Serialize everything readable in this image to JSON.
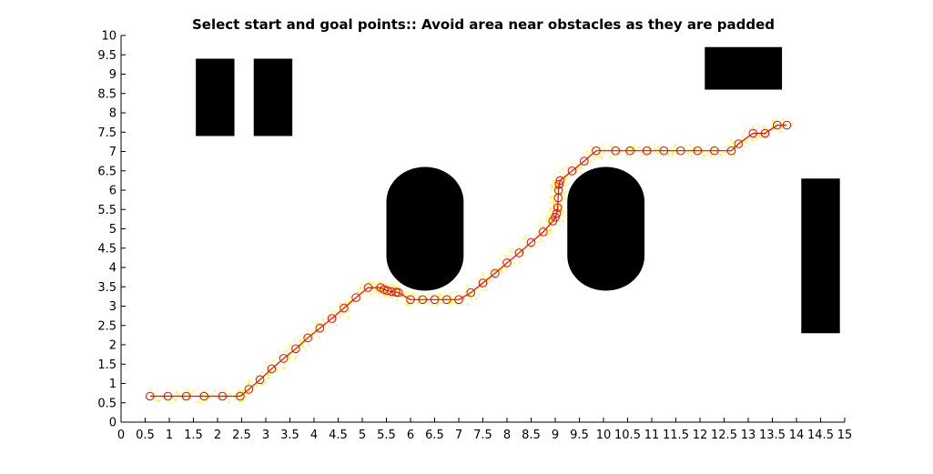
{
  "chart_data": {
    "type": "scatter",
    "title": "Select start and goal points:: Avoid area near obstacles as they are padded",
    "xlabel": "",
    "ylabel": "",
    "xlim": [
      0,
      15
    ],
    "ylim": [
      0,
      10
    ],
    "grid": false,
    "box": false,
    "x_ticks": [
      0,
      0.5,
      1,
      1.5,
      2,
      2.5,
      3,
      3.5,
      4,
      4.5,
      5,
      5.5,
      6,
      6.5,
      7,
      7.5,
      8,
      8.5,
      9,
      9.5,
      10,
      10.5,
      11,
      11.5,
      12,
      12.5,
      13,
      13.5,
      14,
      14.5,
      15
    ],
    "y_ticks": [
      0,
      0.5,
      1,
      1.5,
      2,
      2.5,
      3,
      3.5,
      4,
      4.5,
      5,
      5.5,
      6,
      6.5,
      7,
      7.5,
      8,
      8.5,
      9,
      9.5,
      10
    ],
    "obstacles": [
      {
        "name": "rect-obstacle-1",
        "shape": "rect",
        "x": [
          1.55,
          2.35
        ],
        "y": [
          7.4,
          9.4
        ],
        "color": "#000000"
      },
      {
        "name": "rect-obstacle-2",
        "shape": "rect",
        "x": [
          2.75,
          3.55
        ],
        "y": [
          7.4,
          9.4
        ],
        "color": "#000000"
      },
      {
        "name": "rect-obstacle-3",
        "shape": "rect",
        "x": [
          12.1,
          13.7
        ],
        "y": [
          8.6,
          9.7
        ],
        "color": "#000000"
      },
      {
        "name": "rect-obstacle-4",
        "shape": "rect",
        "x": [
          14.1,
          14.9
        ],
        "y": [
          2.3,
          6.3
        ],
        "color": "#000000"
      },
      {
        "name": "stadium-obstacle-1",
        "shape": "stadium",
        "x": [
          5.5,
          7.1
        ],
        "y": [
          3.4,
          6.6
        ],
        "color": "#000000"
      },
      {
        "name": "stadium-obstacle-2",
        "shape": "stadium",
        "x": [
          9.25,
          10.85
        ],
        "y": [
          3.4,
          6.6
        ],
        "color": "#000000"
      }
    ],
    "series": [
      {
        "marker": "circle",
        "color": "#ff0000",
        "line": true,
        "x": [
          0.6,
          0.97,
          1.35,
          1.72,
          2.1,
          2.47,
          2.65,
          2.88,
          3.12,
          3.37,
          3.62,
          3.87,
          4.12,
          4.37,
          4.62,
          4.87,
          5.12,
          5.38,
          5.45,
          5.52,
          5.6,
          5.7,
          5.75,
          6,
          6.25,
          6.5,
          6.75,
          7,
          7.25,
          7.5,
          7.75,
          8,
          8.25,
          8.5,
          8.75,
          8.95,
          9.0,
          9.03,
          9.05,
          9.06,
          9.07,
          9.08,
          9.1,
          9.35,
          9.6,
          9.85,
          10.25,
          10.55,
          10.9,
          11.25,
          11.6,
          11.95,
          12.3,
          12.65,
          12.8,
          13.1,
          13.35,
          13.6,
          13.8
        ],
        "y": [
          0.67,
          0.67,
          0.67,
          0.67,
          0.67,
          0.67,
          0.85,
          1.1,
          1.38,
          1.65,
          1.9,
          2.18,
          2.43,
          2.68,
          2.95,
          3.22,
          3.48,
          3.48,
          3.43,
          3.4,
          3.38,
          3.36,
          3.35,
          3.17,
          3.17,
          3.17,
          3.17,
          3.17,
          3.35,
          3.6,
          3.85,
          4.12,
          4.38,
          4.65,
          4.92,
          5.2,
          5.3,
          5.4,
          5.55,
          5.8,
          6.0,
          6.15,
          6.25,
          6.5,
          6.75,
          7.02,
          7.02,
          7.02,
          7.02,
          7.02,
          7.02,
          7.02,
          7.02,
          7.02,
          7.2,
          7.47,
          7.47,
          7.68,
          7.68
        ]
      },
      {
        "name": "",
        "marker": "dot",
        "color": "#ffff00",
        "line": false,
        "note": "sampled yellow points scattered around path (representative sample)"
      }
    ]
  }
}
